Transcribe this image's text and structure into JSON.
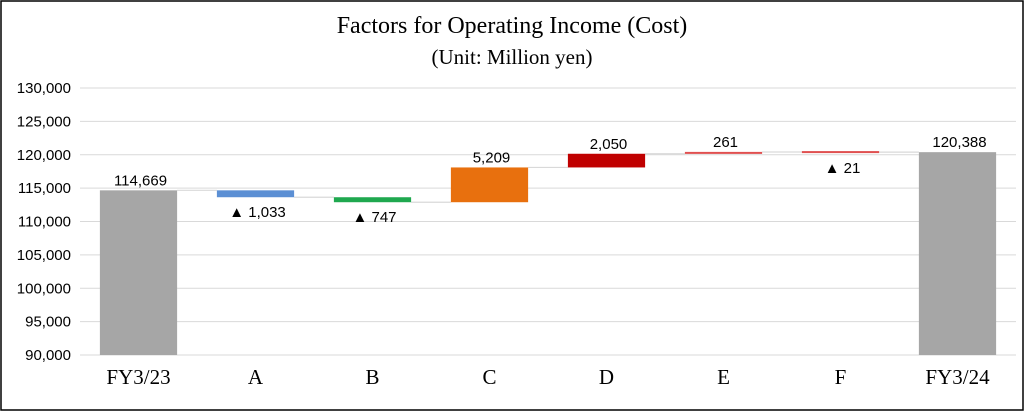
{
  "chart_data": {
    "type": "bar",
    "variant": "waterfall",
    "title": "Factors for Operating Income (Cost)",
    "subtitle": "(Unit: Million yen)",
    "categories": [
      "FY3/23",
      "A",
      "B",
      "C",
      "D",
      "E",
      "F",
      "FY3/24"
    ],
    "steps": [
      {
        "category": "FY3/23",
        "kind": "total",
        "value": 114669,
        "label": "114,669",
        "color": "#a6a6a6"
      },
      {
        "category": "A",
        "kind": "delta",
        "value": -1033,
        "label": "▲ 1,033",
        "color": "#5b8fd4"
      },
      {
        "category": "B",
        "kind": "delta",
        "value": -747,
        "label": "▲ 747",
        "color": "#1fa84f"
      },
      {
        "category": "C",
        "kind": "delta",
        "value": 5209,
        "label": "5,209",
        "color": "#e8700e"
      },
      {
        "category": "D",
        "kind": "delta",
        "value": 2050,
        "label": "2,050",
        "color": "#c00000"
      },
      {
        "category": "E",
        "kind": "delta",
        "value": 261,
        "label": "261",
        "color": "#e05050"
      },
      {
        "category": "F",
        "kind": "delta",
        "value": -21,
        "label": "▲ 21",
        "color": "#e05050"
      },
      {
        "category": "FY3/24",
        "kind": "total",
        "value": 120388,
        "label": "120,388",
        "color": "#a6a6a6"
      }
    ],
    "ylim": [
      90000,
      130000
    ],
    "yticks": [
      90000,
      95000,
      100000,
      105000,
      110000,
      115000,
      120000,
      125000,
      130000
    ],
    "ytick_labels": [
      "90,000",
      "95,000",
      "100,000",
      "105,000",
      "110,000",
      "115,000",
      "120,000",
      "125,000",
      "130,000"
    ],
    "grid": true,
    "legend": "none",
    "connector_color": "#d9d9d9",
    "grid_color": "#d9d9d9"
  }
}
